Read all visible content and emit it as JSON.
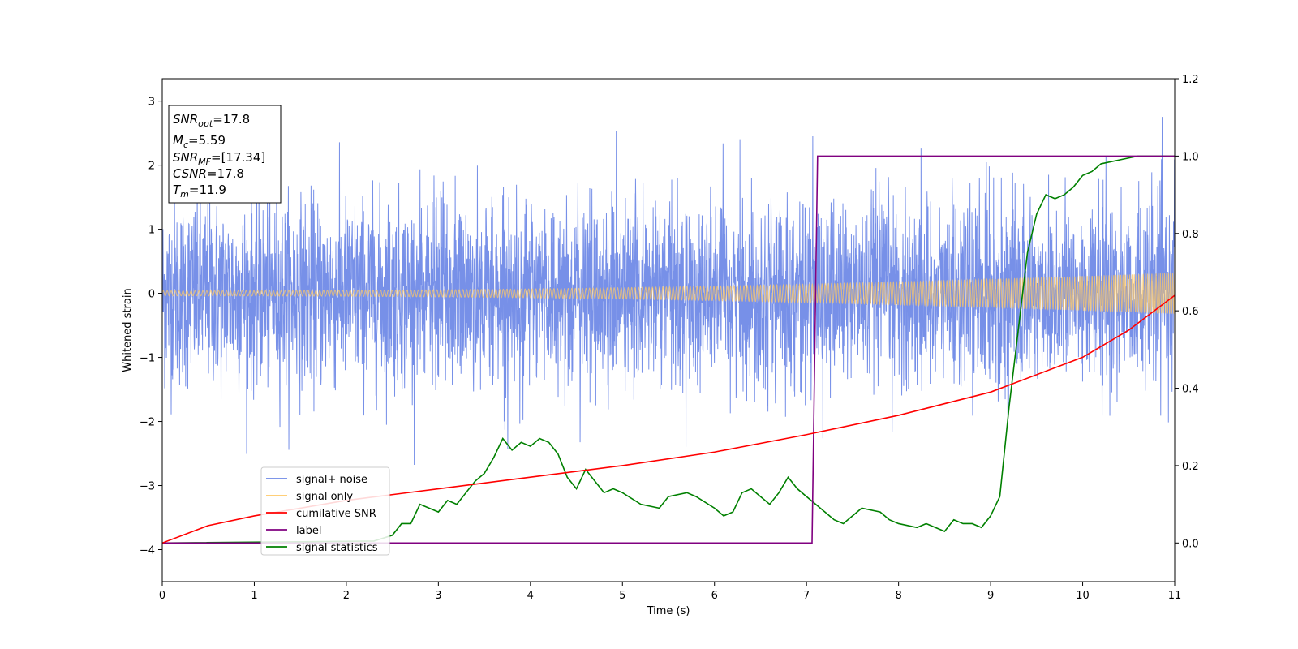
{
  "chart_data": {
    "type": "line",
    "title": "",
    "xlabel": "Time (s)",
    "ylabel": "Whitened strain",
    "ylabel_right": "",
    "xlim": [
      0,
      11
    ],
    "ylim": [
      -4.5,
      3.35
    ],
    "ylim_right": [
      -0.1,
      1.2
    ],
    "xticks": [
      "0",
      "1",
      "2",
      "3",
      "4",
      "5",
      "6",
      "7",
      "8",
      "9",
      "10",
      "11"
    ],
    "yticks_left": [
      "−4",
      "−3",
      "−2",
      "−1",
      "0",
      "1",
      "2",
      "3"
    ],
    "yticks_right": [
      "0.0",
      "0.2",
      "0.4",
      "0.6",
      "0.8",
      "1.0",
      "1.2"
    ],
    "grid": false,
    "legend_position": "lower-left",
    "info_box": {
      "snr_opt": "=17.8",
      "mc": "=5.59",
      "snr_mf": "=[17.34]",
      "csnr": "=17.8",
      "tm": "=11.9"
    },
    "series": [
      {
        "name": "signal+ noise",
        "axis": "left",
        "color": "#6b87e6",
        "kind": "noise",
        "envelope_typical": [
          -1.5,
          1.5
        ],
        "envelope_extremes": [
          -2.8,
          3.0
        ]
      },
      {
        "name": "signal only",
        "axis": "left",
        "color": "#ffc864",
        "kind": "chirp",
        "amplitude_start": 0.04,
        "amplitude_end": 0.32
      },
      {
        "name": "cumilative SNR",
        "axis": "right",
        "color": "#ff0000",
        "x": [
          0,
          0.5,
          1,
          2,
          3,
          4,
          5,
          6,
          7,
          8,
          9,
          10,
          10.5,
          11
        ],
        "y": [
          0.0,
          0.045,
          0.07,
          0.11,
          0.14,
          0.17,
          0.2,
          0.235,
          0.28,
          0.33,
          0.39,
          0.48,
          0.55,
          0.64
        ]
      },
      {
        "name": "label",
        "axis": "right",
        "color": "#800080",
        "x": [
          0,
          7.06,
          7.12,
          11
        ],
        "y": [
          0.0,
          0.0,
          1.0,
          1.0
        ]
      },
      {
        "name": "signal statistics",
        "axis": "right",
        "color": "#008000",
        "x": [
          0,
          2.3,
          2.5,
          2.6,
          2.7,
          2.8,
          3.0,
          3.1,
          3.2,
          3.3,
          3.4,
          3.5,
          3.6,
          3.7,
          3.8,
          3.9,
          4.0,
          4.1,
          4.2,
          4.3,
          4.4,
          4.5,
          4.6,
          4.7,
          4.8,
          4.9,
          5.0,
          5.2,
          5.4,
          5.5,
          5.7,
          5.8,
          6.0,
          6.1,
          6.2,
          6.3,
          6.4,
          6.5,
          6.6,
          6.7,
          6.8,
          6.9,
          7.0,
          7.1,
          7.2,
          7.3,
          7.4,
          7.5,
          7.6,
          7.8,
          7.9,
          8.0,
          8.2,
          8.3,
          8.4,
          8.5,
          8.6,
          8.7,
          8.8,
          8.9,
          9.0,
          9.1,
          9.2,
          9.3,
          9.4,
          9.5,
          9.6,
          9.7,
          9.8,
          9.9,
          10.0,
          10.1,
          10.2,
          10.4,
          10.6,
          10.8,
          11.0
        ],
        "y": [
          0.0,
          0.005,
          0.02,
          0.05,
          0.05,
          0.1,
          0.08,
          0.11,
          0.1,
          0.13,
          0.16,
          0.18,
          0.22,
          0.27,
          0.24,
          0.26,
          0.25,
          0.27,
          0.26,
          0.23,
          0.17,
          0.14,
          0.19,
          0.16,
          0.13,
          0.14,
          0.13,
          0.1,
          0.09,
          0.12,
          0.13,
          0.12,
          0.09,
          0.07,
          0.08,
          0.13,
          0.14,
          0.12,
          0.1,
          0.13,
          0.17,
          0.14,
          0.12,
          0.1,
          0.08,
          0.06,
          0.05,
          0.07,
          0.09,
          0.08,
          0.06,
          0.05,
          0.04,
          0.05,
          0.04,
          0.03,
          0.06,
          0.05,
          0.05,
          0.04,
          0.07,
          0.12,
          0.35,
          0.55,
          0.75,
          0.85,
          0.9,
          0.89,
          0.9,
          0.92,
          0.95,
          0.96,
          0.98,
          0.99,
          1.0,
          1.0,
          1.0
        ]
      }
    ]
  }
}
